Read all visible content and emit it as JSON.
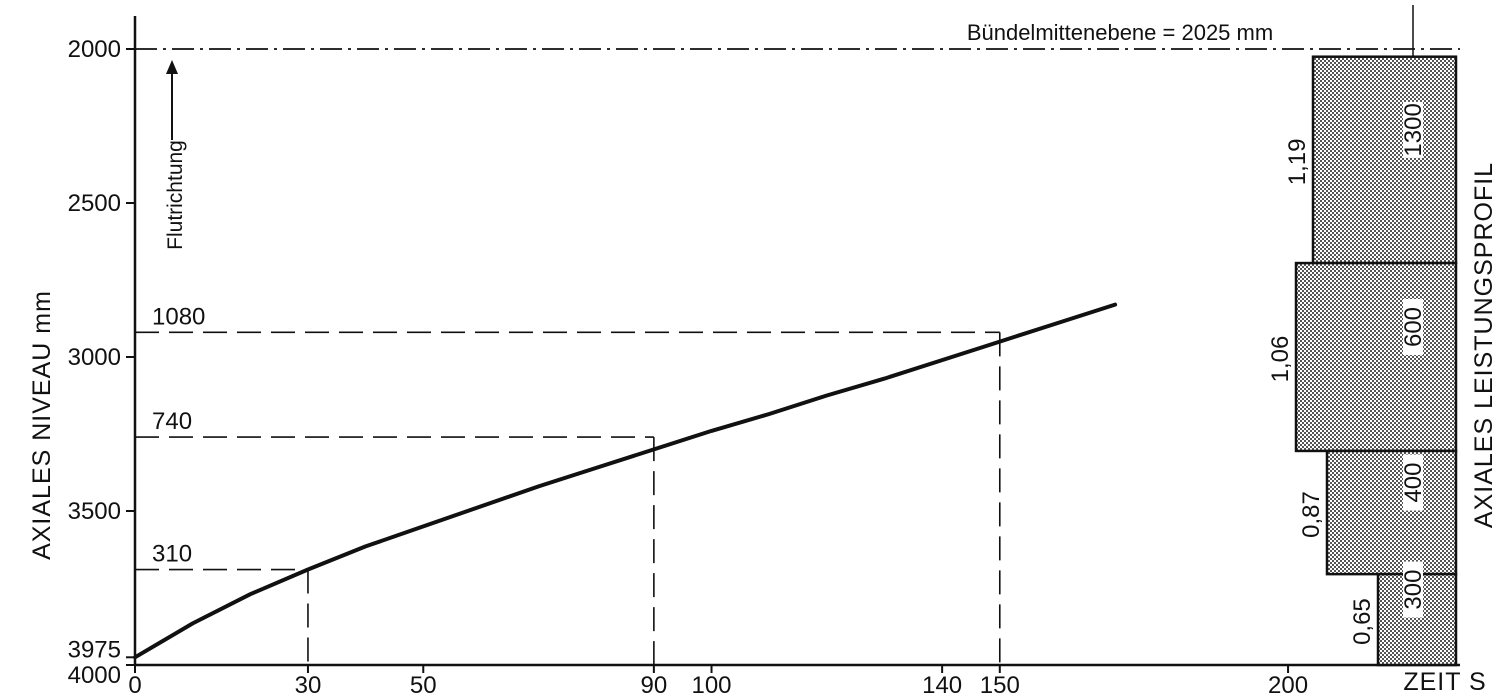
{
  "colors": {
    "ink": "#111111",
    "stipple_light": "#ffffff",
    "stipple_dark": "#555555"
  },
  "chart_data": {
    "type": "line",
    "title": "",
    "ylabel": "AXIALES NIVEAU  mm",
    "xlabel": "ZEIT S",
    "profile_label": "AXIALES LEISTUNGSPROFIL",
    "flow_label": "Flutrichtung",
    "top_annotation": "Bündelmittenebene = 2025 mm",
    "ylim": [
      4000,
      2000
    ],
    "y_reversed": true,
    "xlim": [
      0,
      230
    ],
    "x_ticks": [
      "0",
      "30",
      "50",
      "90",
      "100",
      "140",
      "150",
      "200"
    ],
    "x_tick_values": [
      0,
      30,
      50,
      90,
      100,
      140,
      150,
      200
    ],
    "y_ticks": [
      "2000",
      "2500",
      "3000",
      "3500",
      "3975",
      "4000"
    ],
    "y_tick_values": [
      2000,
      2500,
      3000,
      3500,
      3975,
      4000
    ],
    "grid": false,
    "series": [
      {
        "x": [
          0,
          5,
          10,
          20,
          30,
          40,
          50,
          60,
          70,
          80,
          90,
          100,
          110,
          120,
          130,
          140,
          150,
          160,
          170
        ],
        "y": [
          3975,
          3920,
          3865,
          3770,
          3690,
          3615,
          3550,
          3485,
          3420,
          3360,
          3300,
          3240,
          3185,
          3125,
          3070,
          3010,
          2950,
          2890,
          2830
        ]
      }
    ],
    "reference_lines": [
      {
        "label": "310",
        "x": 30,
        "y": 3690
      },
      {
        "label": "740",
        "x": 90,
        "y": 3260
      },
      {
        "label": "1080",
        "x": 150,
        "y": 2920
      }
    ],
    "power_profile": [
      {
        "factor": "1,19",
        "length": "1300",
        "y_top": 2025,
        "y_bottom": 2695
      },
      {
        "factor": "1,06",
        "length": "600",
        "y_top": 2695,
        "y_bottom": 3305
      },
      {
        "factor": "0,87",
        "length": "400",
        "y_top": 3305,
        "y_bottom": 3705
      },
      {
        "factor": "0,65",
        "length": "300",
        "y_top": 3705,
        "y_bottom": 4000
      }
    ]
  }
}
